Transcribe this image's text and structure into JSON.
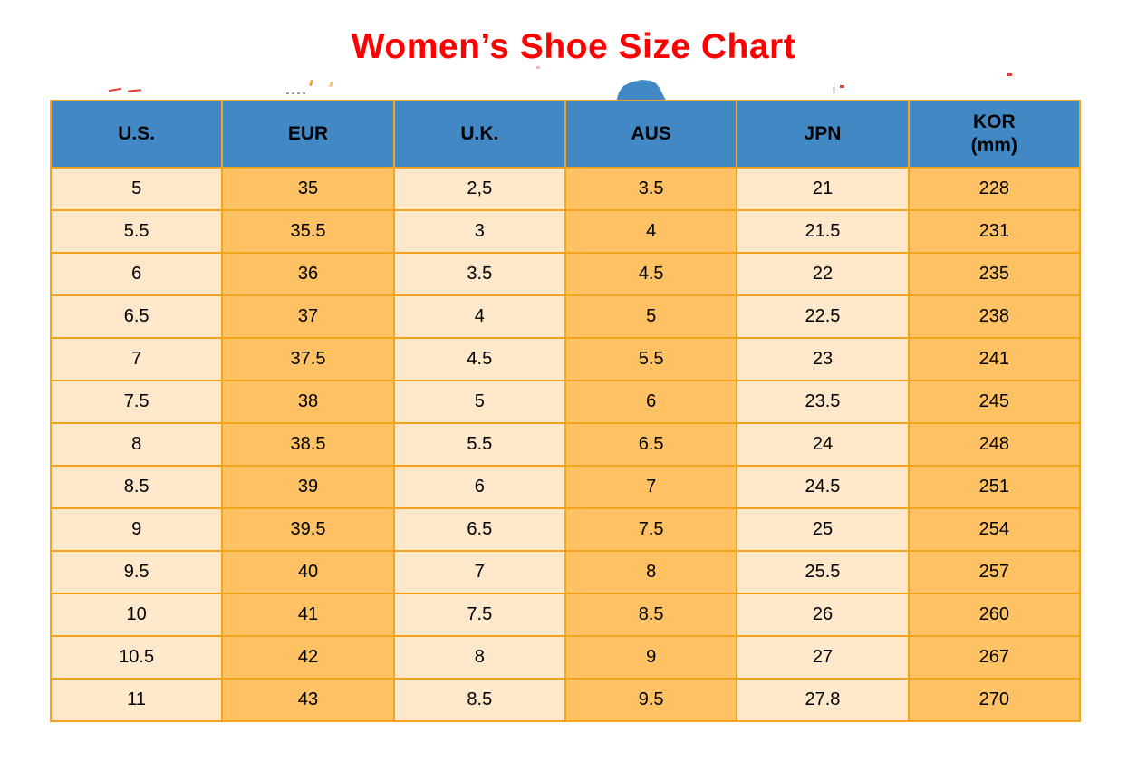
{
  "title": "Women’s Shoe Size Chart",
  "colors": {
    "title": "#FF0000",
    "header_bg": "#4288C5",
    "border": "#F3A41D",
    "cell_light": "#FDE8CC",
    "cell_orange": "#FEC164",
    "cell_text": "#000000"
  },
  "chart_data": {
    "type": "table",
    "title": "Women’s Shoe Size Chart",
    "columns": [
      {
        "key": "us",
        "label": "U.S."
      },
      {
        "key": "eur",
        "label": "EUR"
      },
      {
        "key": "uk",
        "label": "U.K."
      },
      {
        "key": "aus",
        "label": "AUS"
      },
      {
        "key": "jpn",
        "label": "JPN"
      },
      {
        "key": "kor",
        "label": "KOR",
        "sublabel": "(mm)"
      }
    ],
    "rows": [
      [
        "5",
        "35",
        "2,5",
        "3.5",
        "21",
        "228"
      ],
      [
        "5.5",
        "35.5",
        "3",
        "4",
        "21.5",
        "231"
      ],
      [
        "6",
        "36",
        "3.5",
        "4.5",
        "22",
        "235"
      ],
      [
        "6.5",
        "37",
        "4",
        "5",
        "22.5",
        "238"
      ],
      [
        "7",
        "37.5",
        "4.5",
        "5.5",
        "23",
        "241"
      ],
      [
        "7.5",
        "38",
        "5",
        "6",
        "23.5",
        "245"
      ],
      [
        "8",
        "38.5",
        "5.5",
        "6.5",
        "24",
        "248"
      ],
      [
        "8.5",
        "39",
        "6",
        "7",
        "24.5",
        "251"
      ],
      [
        "9",
        "39.5",
        "6.5",
        "7.5",
        "25",
        "254"
      ],
      [
        "9.5",
        "40",
        "7",
        "8",
        "25.5",
        "257"
      ],
      [
        "10",
        "41",
        "7.5",
        "8.5",
        "26",
        "260"
      ],
      [
        "10.5",
        "42",
        "8",
        "9",
        "27",
        "267"
      ],
      [
        "11",
        "43",
        "8.5",
        "9.5",
        "27.8",
        "270"
      ]
    ]
  }
}
